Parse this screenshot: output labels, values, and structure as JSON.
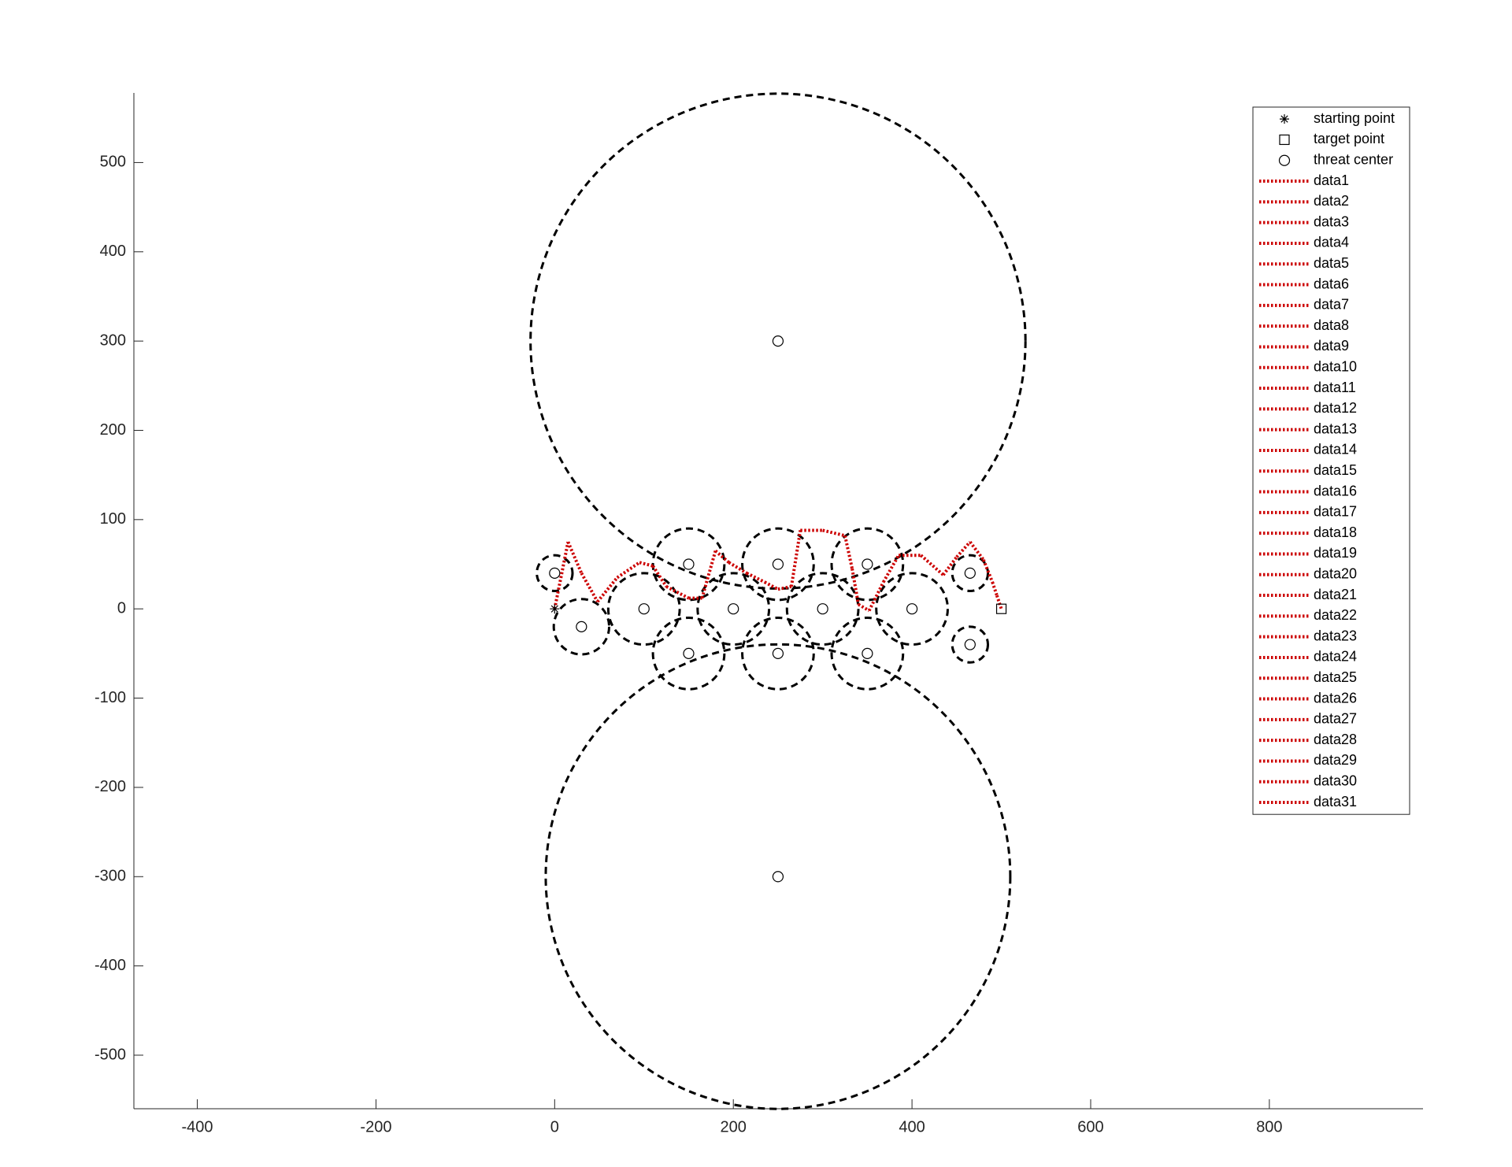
{
  "chart_data": {
    "type": "line",
    "xlim": [
      -471,
      972
    ],
    "ylim": [
      -560,
      578
    ],
    "xticks": [
      -400,
      -200,
      0,
      200,
      400,
      600,
      800
    ],
    "yticks": [
      -500,
      -400,
      -300,
      -200,
      -100,
      0,
      100,
      200,
      300,
      400,
      500
    ],
    "legend": "northeast",
    "series": [
      {
        "name": "starting point",
        "color": "#000000",
        "marker": "asterisk",
        "x": [
          0
        ],
        "y": [
          0
        ]
      },
      {
        "name": "target point",
        "color": "#000000",
        "marker": "square",
        "x": [
          500
        ],
        "y": [
          0
        ]
      },
      {
        "name": "threat center",
        "color": "#000000",
        "marker": "circle",
        "x": [
          250,
          250,
          0,
          30,
          100,
          150,
          150,
          200,
          250,
          250,
          300,
          350,
          350,
          400,
          465,
          465
        ],
        "y": [
          300,
          -300,
          40,
          -20,
          0,
          50,
          -50,
          0,
          50,
          -50,
          0,
          50,
          -50,
          0,
          40,
          -40
        ],
        "radius": [
          277,
          260,
          20,
          31,
          40,
          40,
          40,
          40,
          40,
          40,
          40,
          40,
          40,
          40,
          20,
          20
        ]
      },
      {
        "name": "data1",
        "color": "#cc0000",
        "line": "dotted",
        "x": [
          0,
          15
        ],
        "y": [
          0,
          75
        ]
      },
      {
        "name": "data2",
        "color": "#cc0000",
        "line": "dotted",
        "x": [
          15,
          30
        ],
        "y": [
          75,
          40
        ]
      },
      {
        "name": "data3",
        "color": "#cc0000",
        "line": "dotted",
        "x": [
          30,
          48
        ],
        "y": [
          40,
          8
        ]
      },
      {
        "name": "data4",
        "color": "#cc0000",
        "line": "dotted",
        "x": [
          48,
          70
        ],
        "y": [
          8,
          35
        ]
      },
      {
        "name": "data5",
        "color": "#cc0000",
        "line": "dotted",
        "x": [
          70,
          95
        ],
        "y": [
          35,
          52
        ]
      },
      {
        "name": "data6",
        "color": "#cc0000",
        "line": "dotted",
        "x": [
          95,
          110
        ],
        "y": [
          52,
          48
        ]
      },
      {
        "name": "data7",
        "color": "#cc0000",
        "line": "dotted",
        "x": [
          110,
          125
        ],
        "y": [
          48,
          25
        ]
      },
      {
        "name": "data8",
        "color": "#cc0000",
        "line": "dotted",
        "x": [
          125,
          150
        ],
        "y": [
          25,
          12
        ]
      },
      {
        "name": "data9",
        "color": "#cc0000",
        "line": "dotted",
        "x": [
          150,
          165
        ],
        "y": [
          12,
          12
        ]
      },
      {
        "name": "data10",
        "color": "#cc0000",
        "line": "dotted",
        "x": [
          165,
          180
        ],
        "y": [
          12,
          65
        ]
      },
      {
        "name": "data11",
        "color": "#cc0000",
        "line": "dotted",
        "x": [
          180,
          195
        ],
        "y": [
          65,
          52
        ]
      },
      {
        "name": "data12",
        "color": "#cc0000",
        "line": "dotted",
        "x": [
          195,
          215
        ],
        "y": [
          52,
          40
        ]
      },
      {
        "name": "data13",
        "color": "#cc0000",
        "line": "dotted",
        "x": [
          215,
          235
        ],
        "y": [
          40,
          30
        ]
      },
      {
        "name": "data14",
        "color": "#cc0000",
        "line": "dotted",
        "x": [
          235,
          250
        ],
        "y": [
          30,
          22
        ]
      },
      {
        "name": "data15",
        "color": "#cc0000",
        "line": "dotted",
        "x": [
          250,
          265
        ],
        "y": [
          22,
          25
        ]
      },
      {
        "name": "data16",
        "color": "#cc0000",
        "line": "dotted",
        "x": [
          265,
          275
        ],
        "y": [
          25,
          88
        ]
      },
      {
        "name": "data17",
        "color": "#cc0000",
        "line": "dotted",
        "x": [
          275,
          300
        ],
        "y": [
          88,
          88
        ]
      },
      {
        "name": "data18",
        "color": "#cc0000",
        "line": "dotted",
        "x": [
          300,
          325
        ],
        "y": [
          88,
          82
        ]
      },
      {
        "name": "data19",
        "color": "#cc0000",
        "line": "dotted",
        "x": [
          325,
          333
        ],
        "y": [
          82,
          45
        ]
      },
      {
        "name": "data20",
        "color": "#cc0000",
        "line": "dotted",
        "x": [
          333,
          340
        ],
        "y": [
          45,
          5
        ]
      },
      {
        "name": "data21",
        "color": "#cc0000",
        "line": "dotted",
        "x": [
          340,
          352
        ],
        "y": [
          5,
          -2
        ]
      },
      {
        "name": "data22",
        "color": "#cc0000",
        "line": "dotted",
        "x": [
          352,
          368
        ],
        "y": [
          -2,
          30
        ]
      },
      {
        "name": "data23",
        "color": "#cc0000",
        "line": "dotted",
        "x": [
          368,
          385
        ],
        "y": [
          30,
          60
        ]
      },
      {
        "name": "data24",
        "color": "#cc0000",
        "line": "dotted",
        "x": [
          385,
          410
        ],
        "y": [
          60,
          60
        ]
      },
      {
        "name": "data25",
        "color": "#cc0000",
        "line": "dotted",
        "x": [
          410,
          435
        ],
        "y": [
          60,
          38
        ]
      },
      {
        "name": "data26",
        "color": "#cc0000",
        "line": "dotted",
        "x": [
          435,
          450
        ],
        "y": [
          38,
          58
        ]
      },
      {
        "name": "data27",
        "color": "#cc0000",
        "line": "dotted",
        "x": [
          450,
          465
        ],
        "y": [
          58,
          75
        ]
      },
      {
        "name": "data28",
        "color": "#cc0000",
        "line": "dotted",
        "x": [
          465,
          480
        ],
        "y": [
          75,
          55
        ]
      },
      {
        "name": "data29",
        "color": "#cc0000",
        "line": "dotted",
        "x": [
          480,
          490
        ],
        "y": [
          55,
          30
        ]
      },
      {
        "name": "data30",
        "color": "#cc0000",
        "line": "dotted",
        "x": [
          490,
          495
        ],
        "y": [
          30,
          15
        ]
      },
      {
        "name": "data31",
        "color": "#cc0000",
        "line": "dotted",
        "x": [
          495,
          500
        ],
        "y": [
          15,
          0
        ]
      }
    ]
  }
}
